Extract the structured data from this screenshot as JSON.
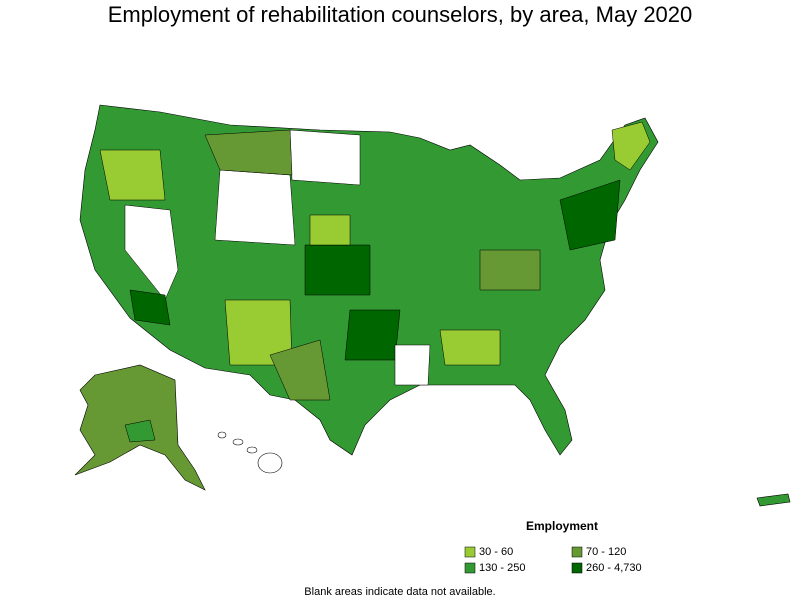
{
  "title": "Employment of rehabilitation counselors, by area, May 2020",
  "legend": {
    "title": "Employment",
    "items": [
      {
        "label": "30 - 60",
        "color": "#99cc33"
      },
      {
        "label": "70 - 120",
        "color": "#669933"
      },
      {
        "label": "130 - 250",
        "color": "#339933"
      },
      {
        "label": "260 - 4,730",
        "color": "#006600"
      }
    ]
  },
  "note": "Blank areas indicate data not available."
}
